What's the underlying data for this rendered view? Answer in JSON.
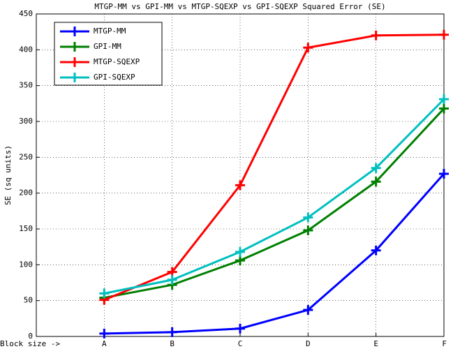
{
  "chart_data": {
    "type": "line",
    "title": "MTGP-MM vs GPI-MM vs MTGP-SQEXP vs GPI-SQEXP Squared Error (SE)",
    "y_label": "SE (sq units)",
    "categories": [
      "Block size ->",
      "A",
      "B",
      "C",
      "D",
      "E",
      "F"
    ],
    "series": [
      {
        "name": "MTGP-MM",
        "color": "#0000ff",
        "values": [
          null,
          4,
          6,
          11,
          37,
          120,
          227
        ]
      },
      {
        "name": "GPI-MM",
        "color": "#007f00",
        "values": [
          null,
          54,
          72,
          106,
          148,
          216,
          318
        ]
      },
      {
        "name": "MTGP-SQEXP",
        "color": "#ff0000",
        "values": [
          null,
          51,
          90,
          211,
          403,
          420,
          421
        ]
      },
      {
        "name": "GPI-SQEXP",
        "color": "#00bfbf",
        "values": [
          null,
          60,
          79,
          118,
          166,
          235,
          331
        ]
      }
    ],
    "ylim": [
      0,
      450
    ],
    "yticks": [
      0,
      50,
      100,
      150,
      200,
      250,
      300,
      350,
      400,
      450
    ],
    "grid": true,
    "legend": "upper left"
  }
}
